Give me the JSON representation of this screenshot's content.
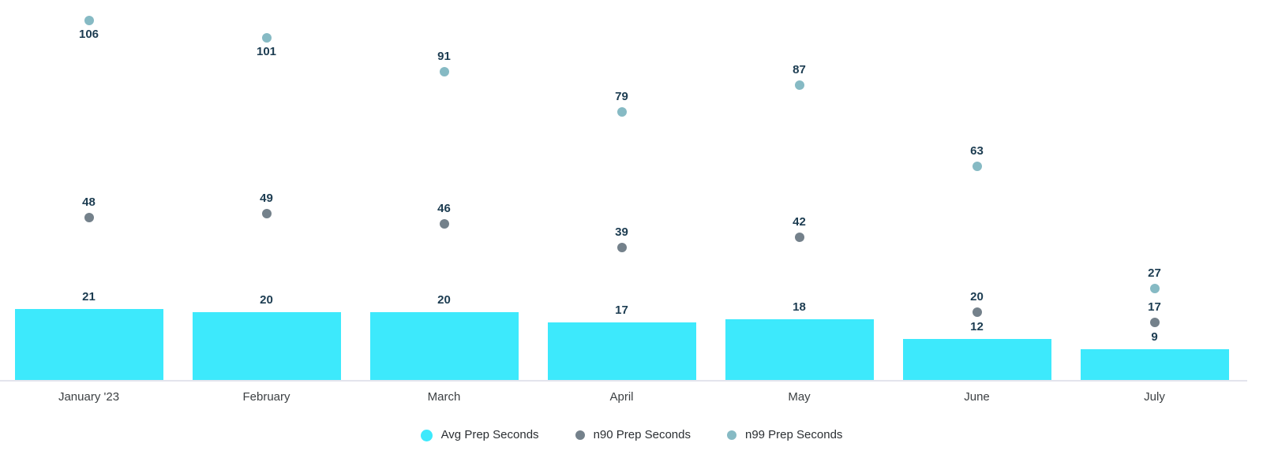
{
  "colors": {
    "bar": "#3DE9FC",
    "n90": "#74818B",
    "n99": "#86BAC4",
    "value_label": "#1C3C51",
    "month_label": "#3C4043",
    "legend_text": "#2B2F33",
    "axis_line": "#E3E4ED",
    "background": "#FFFFFF"
  },
  "chart_data": {
    "type": "bar",
    "categories": [
      "January '23",
      "February",
      "March",
      "April",
      "May",
      "June",
      "July"
    ],
    "series": [
      {
        "name": "Avg Prep Seconds",
        "type": "bar",
        "color_key": "bar",
        "values": [
          21,
          20,
          20,
          17,
          18,
          12,
          9
        ]
      },
      {
        "name": "n90 Prep Seconds",
        "type": "scatter",
        "color_key": "n90",
        "values": [
          48,
          49,
          46,
          39,
          42,
          20,
          17
        ]
      },
      {
        "name": "n99 Prep Seconds",
        "type": "scatter",
        "color_key": "n99",
        "values": [
          106,
          101,
          91,
          79,
          87,
          63,
          27
        ]
      }
    ],
    "title": "",
    "xlabel": "",
    "ylabel": "",
    "ylim": [
      0,
      110
    ],
    "grid": false,
    "value_labels": true,
    "legend_position": "bottom"
  }
}
